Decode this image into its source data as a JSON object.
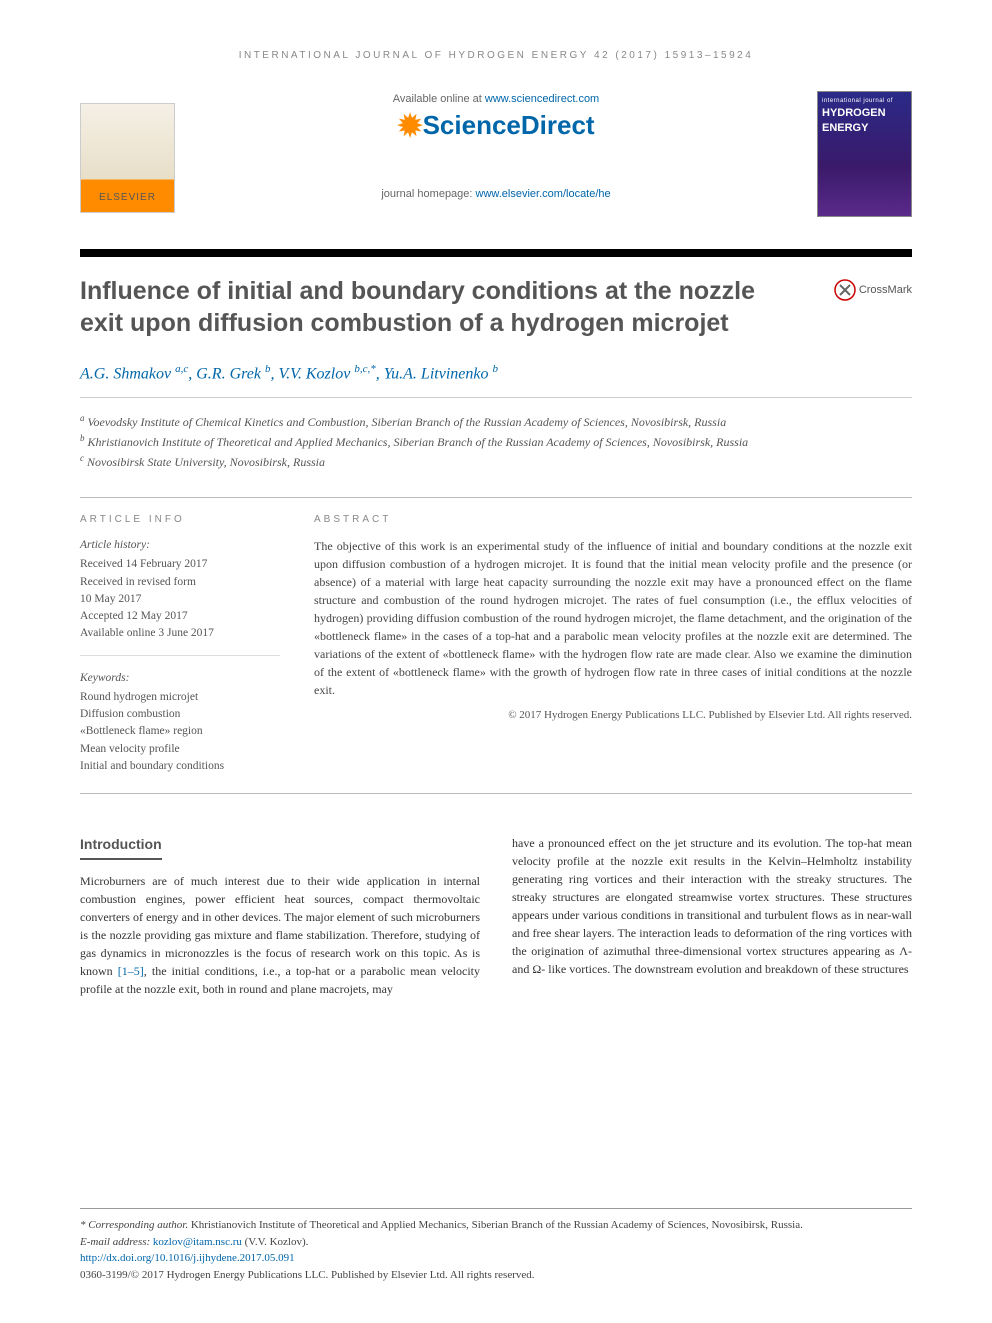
{
  "running_head": "INTERNATIONAL JOURNAL OF HYDROGEN ENERGY 42 (2017) 15913–15924",
  "header": {
    "available_prefix": "Available online at ",
    "available_link": "www.sciencedirect.com",
    "sd_logo_text": "ScienceDirect",
    "homepage_prefix": "journal homepage: ",
    "homepage_link": "www.elsevier.com/locate/he",
    "elsevier_label": "ELSEVIER",
    "cover_small": "international journal of",
    "cover_line1": "HYDROGEN",
    "cover_line2": "ENERGY"
  },
  "crossmark_label": "CrossMark",
  "title": "Influence of initial and boundary conditions at the nozzle exit upon diffusion combustion of a hydrogen microjet",
  "authors_html": "A.G. Shmakov <span class='sup'>a,c</span>, G.R. Grek <span class='sup'>b</span>, V.V. Kozlov <span class='sup'>b,c,*</span>, Yu.A. Litvinenko <span class='sup'>b</span>",
  "affiliations": [
    {
      "sup": "a",
      "text": "Voevodsky Institute of Chemical Kinetics and Combustion, Siberian Branch of the Russian Academy of Sciences, Novosibirsk, Russia"
    },
    {
      "sup": "b",
      "text": "Khristianovich Institute of Theoretical and Applied Mechanics, Siberian Branch of the Russian Academy of Sciences, Novosibirsk, Russia"
    },
    {
      "sup": "c",
      "text": "Novosibirsk State University, Novosibirsk, Russia"
    }
  ],
  "info": {
    "head": "ARTICLE INFO",
    "history_label": "Article history:",
    "history": [
      "Received 14 February 2017",
      "Received in revised form",
      "10 May 2017",
      "Accepted 12 May 2017",
      "Available online 3 June 2017"
    ],
    "keywords_label": "Keywords:",
    "keywords": [
      "Round hydrogen microjet",
      "Diffusion combustion",
      "«Bottleneck flame» region",
      "Mean velocity profile",
      "Initial and boundary conditions"
    ]
  },
  "abstract": {
    "head": "ABSTRACT",
    "text": "The objective of this work is an experimental study of the influence of initial and boundary conditions at the nozzle exit upon diffusion combustion of a hydrogen microjet. It is found that the initial mean velocity profile and the presence (or absence) of a material with large heat capacity surrounding the nozzle exit may have a pronounced effect on the flame structure and combustion of the round hydrogen microjet. The rates of fuel consumption (i.e., the efflux velocities of hydrogen) providing diffusion combustion of the round hydrogen microjet, the flame detachment, and the origination of the «bottleneck flame» in the cases of a top-hat and a parabolic mean velocity profiles at the nozzle exit are determined. The variations of the extent of «bottleneck flame» with the hydrogen flow rate are made clear. Also we examine the diminution of the extent of «bottleneck flame» with the growth of hydrogen flow rate in three cases of initial conditions at the nozzle exit.",
    "copyright": "© 2017 Hydrogen Energy Publications LLC. Published by Elsevier Ltd. All rights reserved."
  },
  "intro": {
    "head": "Introduction",
    "col1": "Microburners are of much interest due to their wide application in internal combustion engines, power efficient heat sources, compact thermovoltaic converters of energy and in other devices. The major element of such microburners is the nozzle providing gas mixture and flame stabilization. Therefore, studying of gas dynamics in micronozzles is the focus of research work on this topic. As is known ",
    "ref": "[1–5]",
    "col1b": ", the initial conditions, i.e., a top-hat or a parabolic mean velocity profile at the nozzle exit, both in round and plane macrojets, may",
    "col2": "have a pronounced effect on the jet structure and its evolution. The top-hat mean velocity profile at the nozzle exit results in the Kelvin–Helmholtz instability generating ring vortices and their interaction with the streaky structures. The streaky structures are elongated streamwise vortex structures. These structures appears under various conditions in transitional and turbulent flows as in near-wall and free shear layers. The interaction leads to deformation of the ring vortices with the origination of azimuthal three-dimensional vortex structures appearing as Λ- and Ω- like vortices. The downstream evolution and breakdown of these structures"
  },
  "footnotes": {
    "corr_label": "* Corresponding author.",
    "corr_text": " Khristianovich Institute of Theoretical and Applied Mechanics, Siberian Branch of the Russian Academy of Sciences, Novosibirsk, Russia.",
    "email_label": "E-mail address: ",
    "email": "kozlov@itam.nsc.ru",
    "email_suffix": " (V.V. Kozlov).",
    "doi": "http://dx.doi.org/10.1016/j.ijhydene.2017.05.091",
    "issn_line": "0360-3199/© 2017 Hydrogen Energy Publications LLC. Published by Elsevier Ltd. All rights reserved."
  },
  "colors": {
    "link": "#0066aa",
    "heading": "#555555",
    "orange": "#ff8c00",
    "rule": "#000000"
  }
}
